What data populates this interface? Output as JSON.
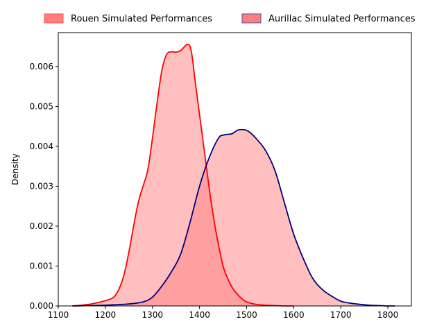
{
  "chart_data": {
    "type": "area",
    "xlabel": "",
    "ylabel": "Density",
    "xlim": [
      1100,
      1850
    ],
    "ylim": [
      0,
      0.00685
    ],
    "xticks": [
      1100,
      1200,
      1300,
      1400,
      1500,
      1600,
      1700,
      1800
    ],
    "xtick_labels": [
      "1100",
      "1200",
      "1300",
      "1400",
      "1500",
      "1600",
      "1700",
      "1800"
    ],
    "yticks": [
      0,
      0.001,
      0.002,
      0.003,
      0.004,
      0.005,
      0.006
    ],
    "ytick_labels": [
      "0.000",
      "0.001",
      "0.002",
      "0.003",
      "0.004",
      "0.005",
      "0.006"
    ],
    "grid": false,
    "legend_position": "top-center, above plot",
    "series": [
      {
        "name": "Rouen Simulated Performances",
        "line_color": "#ff0000",
        "fill_color": "#ff7f7f",
        "x": [
          1130,
          1150,
          1170,
          1190,
          1210,
          1220,
          1230,
          1240,
          1250,
          1260,
          1270,
          1280,
          1290,
          1300,
          1310,
          1320,
          1330,
          1340,
          1350,
          1360,
          1370,
          1375,
          1380,
          1385,
          1390,
          1400,
          1410,
          1420,
          1430,
          1440,
          1450,
          1460,
          1470,
          1480,
          1490,
          1500,
          1520,
          1540,
          1560,
          1580,
          1600
        ],
        "y": [
          0.0,
          2e-05,
          5e-05,
          0.0001,
          0.00017,
          0.00025,
          0.00045,
          0.0008,
          0.00135,
          0.002,
          0.0026,
          0.003,
          0.0034,
          0.0042,
          0.0051,
          0.0059,
          0.0063,
          0.00637,
          0.00636,
          0.0064,
          0.00652,
          0.00656,
          0.0065,
          0.0062,
          0.0057,
          0.0048,
          0.0039,
          0.003,
          0.0022,
          0.00155,
          0.001,
          0.00068,
          0.00045,
          0.0003,
          0.00018,
          0.0001,
          4e-05,
          2e-05,
          1e-05,
          0.0,
          0.0
        ]
      },
      {
        "name": "Aurillac Simulated Performances",
        "line_color": "#000080",
        "fill_color": "#ff7f7f",
        "x": [
          1130,
          1200,
          1250,
          1280,
          1300,
          1320,
          1340,
          1360,
          1380,
          1400,
          1420,
          1440,
          1450,
          1460,
          1470,
          1480,
          1490,
          1500,
          1510,
          1520,
          1540,
          1560,
          1580,
          1600,
          1620,
          1640,
          1660,
          1680,
          1700,
          1720,
          1740,
          1760,
          1780,
          1800,
          1815
        ],
        "y": [
          0.0,
          2e-05,
          5e-05,
          0.0001,
          0.00022,
          0.0005,
          0.00085,
          0.0013,
          0.0021,
          0.003,
          0.0037,
          0.0042,
          0.00428,
          0.0043,
          0.00432,
          0.0044,
          0.00442,
          0.0044,
          0.00432,
          0.0042,
          0.0039,
          0.0034,
          0.0026,
          0.0018,
          0.0012,
          0.0007,
          0.00042,
          0.00025,
          0.00012,
          7e-05,
          4e-05,
          2e-05,
          1e-05,
          0.0,
          0.0
        ]
      }
    ]
  }
}
